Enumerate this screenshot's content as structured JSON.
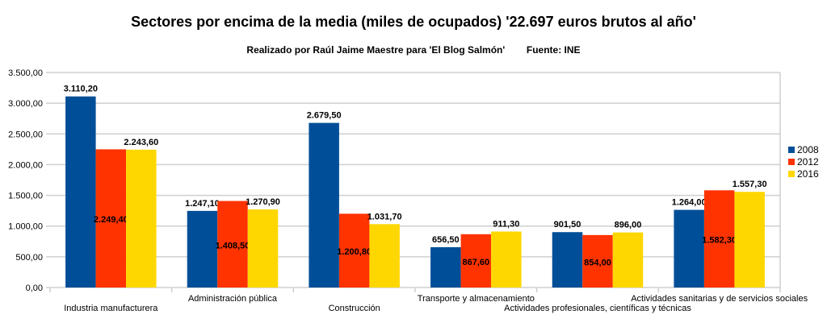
{
  "chart_data": {
    "type": "bar",
    "title": "Sectores por encima de la media (miles de ocupados) '22.697 euros brutos al año'",
    "subtitle": "Realizado por Raúl Jaime Maestre para 'El Blog Salmón'        Fuente: INE",
    "xlabel": "",
    "ylabel": "",
    "ylim": [
      0,
      3500
    ],
    "yticks": [
      0,
      500,
      1000,
      1500,
      2000,
      2500,
      3000,
      3500
    ],
    "ytick_labels": [
      "0,00",
      "500,00",
      "1.000,00",
      "1.500,00",
      "2.000,00",
      "2.500,00",
      "3.000,00",
      "3.500,00"
    ],
    "grid": true,
    "legend_position": "right",
    "categories": [
      "Industria manufacturera",
      "Administración pública",
      "Construcción",
      "Transporte y almacenamiento",
      "Actividades profesionales, científicas y técnicas",
      "Actividades sanitarias y de servicios sociales"
    ],
    "series": [
      {
        "name": "2008",
        "color": "#004e98",
        "values": [
          3110.2,
          1247.1,
          2679.5,
          656.5,
          901.5,
          1264.0
        ],
        "labels": [
          "3.110,20",
          "1.247,10",
          "2.679,50",
          "656,50",
          "901,50",
          "1.264,00"
        ]
      },
      {
        "name": "2012",
        "color": "#ff3300",
        "values": [
          2249.4,
          1408.5,
          1200.8,
          867.6,
          854.0,
          1582.3
        ],
        "labels": [
          "2.249,40",
          "1.408,50",
          "1.200,80",
          "867,60",
          "854,00",
          "1.582,30"
        ]
      },
      {
        "name": "2016",
        "color": "#ffd700",
        "values": [
          2243.6,
          1270.9,
          1031.7,
          911.3,
          896.0,
          1557.3
        ],
        "labels": [
          "2.243,60",
          "1.270,90",
          "1.031,70",
          "911,30",
          "896,00",
          "1.557,30"
        ]
      }
    ]
  }
}
